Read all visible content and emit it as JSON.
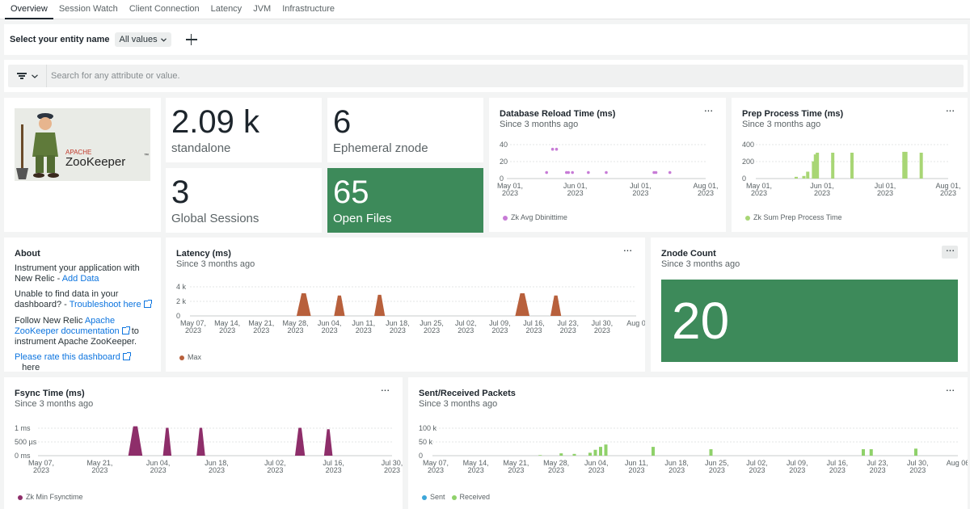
{
  "tabs": [
    "Overview",
    "Session Watch",
    "Client Connection",
    "Latency",
    "JVM",
    "Infrastructure"
  ],
  "filter": {
    "label": "Select your entity name",
    "value": "All values"
  },
  "search": {
    "placeholder": "Search for any attribute or value."
  },
  "logo": {
    "brand": "APACHE",
    "name": "ZooKeeper",
    "tm": "™"
  },
  "billboards": [
    {
      "value": "2.09 k",
      "label": "standalone"
    },
    {
      "value": "6",
      "label": "Ephemeral znode"
    },
    {
      "value": "3",
      "label": "Global Sessions"
    },
    {
      "value": "65",
      "label": "Open Files"
    }
  ],
  "about": {
    "title": "About",
    "p1_text": "Instrument your application with New Relic - ",
    "p1_link": "Add Data",
    "p2_text": "Unable to find data in your dashboard? - ",
    "p2_link": "Troubleshoot here",
    "p3_text": "Follow New Relic ",
    "p3_link": "Apache ZooKeeper documentation",
    "p3_tail": " to instrument Apache ZooKeeper.",
    "p4_link": "Please rate this dashboard",
    "p4_tail": "here"
  },
  "znode": {
    "title": "Znode Count",
    "subtitle": "Since 3 months ago",
    "value": "20"
  },
  "colors": {
    "green": "#3d8a5a",
    "purple": "#c77bd6",
    "lime": "#a8d675",
    "rust": "#b8603c",
    "maroon": "#8e2e6a",
    "blue": "#3da6d9",
    "received": "#8fd16a"
  },
  "chart_data": [
    {
      "id": "dbreload",
      "type": "scatter",
      "title": "Database Reload Time (ms)",
      "subtitle": "Since 3 months ago",
      "yticks": [
        "40",
        "20",
        "0"
      ],
      "ylim": [
        0,
        45
      ],
      "xticks": [
        "May 01,\n2023",
        "Jun 01,\n2023",
        "Jul 01,\n2023",
        "Aug 01,\n2023"
      ],
      "xlim": [
        0,
        1
      ],
      "series": [
        {
          "name": "Zk Avg Dbinittime",
          "color": "#c77bd6",
          "points": [
            [
              0.2,
              7
            ],
            [
              0.23,
              34
            ],
            [
              0.25,
              34
            ],
            [
              0.3,
              7
            ],
            [
              0.31,
              7
            ],
            [
              0.33,
              7
            ],
            [
              0.41,
              7
            ],
            [
              0.5,
              7
            ],
            [
              0.74,
              7
            ],
            [
              0.75,
              7
            ],
            [
              0.82,
              7
            ]
          ]
        }
      ]
    },
    {
      "id": "prep",
      "type": "bar",
      "title": "Prep Process Time (ms)",
      "subtitle": "Since 3 months ago",
      "yticks": [
        "400",
        "200",
        "0"
      ],
      "ylim": [
        0,
        450
      ],
      "xticks": [
        "May 01,\n2023",
        "Jun 01,\n2023",
        "Jul 01,\n2023",
        "Aug 01,\n2023"
      ],
      "xlim": [
        0,
        1
      ],
      "series": [
        {
          "name": "Zk Sum Prep Process Time",
          "color": "#a8d675",
          "points": [
            [
              0.21,
              20
            ],
            [
              0.25,
              30
            ],
            [
              0.27,
              80
            ],
            [
              0.3,
              200
            ],
            [
              0.31,
              280
            ],
            [
              0.32,
              300
            ],
            [
              0.4,
              300
            ],
            [
              0.5,
              300
            ],
            [
              0.77,
              310
            ],
            [
              0.78,
              310
            ],
            [
              0.86,
              300
            ]
          ]
        }
      ]
    },
    {
      "id": "latency",
      "type": "area",
      "title": "Latency (ms)",
      "subtitle": "Since 3 months ago",
      "yticks": [
        "4 k",
        "2 k",
        "0"
      ],
      "ylim": [
        0,
        4500
      ],
      "xticks": [
        "May 07,\n2023",
        "May 14,\n2023",
        "May 21,\n2023",
        "May 28,\n2023",
        "Jun 04,\n2023",
        "Jun 11,\n2023",
        "Jun 18,\n2023",
        "Jun 25,\n2023",
        "Jul 02,\n2023",
        "Jul 09,\n2023",
        "Jul 16,\n2023",
        "Jul 23,\n2023",
        "Jul 30,\n2023",
        "Aug 0"
      ],
      "xlim": [
        0,
        1
      ],
      "series": [
        {
          "name": "Max",
          "color": "#b8603c",
          "spikes": [
            [
              0.255,
              3000,
              0.016
            ],
            [
              0.335,
              2700,
              0.012
            ],
            [
              0.425,
              2800,
              0.012
            ],
            [
              0.745,
              3000,
              0.016
            ],
            [
              0.82,
              2700,
              0.012
            ]
          ]
        }
      ]
    },
    {
      "id": "fsync",
      "type": "area",
      "title": "Fsync Time (ms)",
      "subtitle": "Since 3 months ago",
      "yticks": [
        "1 ms",
        "500 µs",
        "0 ms"
      ],
      "ylim": [
        0,
        1.1
      ],
      "xticks": [
        "May 07,\n2023",
        "May 21,\n2023",
        "Jun 04,\n2023",
        "Jun 18,\n2023",
        "Jul 02,\n2023",
        "Jul 16,\n2023",
        "Jul 30,\n2023"
      ],
      "xlim": [
        0,
        1
      ],
      "series": [
        {
          "name": "Zk Min Fsynctime",
          "color": "#8e2e6a",
          "spikes": [
            [
              0.275,
              1.0,
              0.02
            ],
            [
              0.365,
              0.95,
              0.012
            ],
            [
              0.46,
              0.95,
              0.012
            ],
            [
              0.74,
              0.95,
              0.014
            ],
            [
              0.82,
              0.9,
              0.012
            ]
          ]
        }
      ]
    },
    {
      "id": "packets",
      "type": "bar",
      "title": "Sent/Received Packets",
      "subtitle": "Since 3 months ago",
      "yticks": [
        "100 k",
        "50 k",
        "0"
      ],
      "ylim": [
        0,
        110000
      ],
      "xticks": [
        "May 07,\n2023",
        "May 14,\n2023",
        "May 21,\n2023",
        "May 28,\n2023",
        "Jun 04,\n2023",
        "Jun 11,\n2023",
        "Jun 18,\n2023",
        "Jun 25,\n2023",
        "Jul 02,\n2023",
        "Jul 09,\n2023",
        "Jul 16,\n2023",
        "Jul 23,\n2023",
        "Jul 30,\n2023",
        "Aug 06"
      ],
      "xlim": [
        0,
        1
      ],
      "series": [
        {
          "name": "Sent",
          "color": "#3da6d9",
          "points": [
            [
              0.245,
              500
            ],
            [
              0.27,
              500
            ],
            [
              0.3,
              3000
            ],
            [
              0.31,
              5000
            ],
            [
              0.32,
              8000
            ],
            [
              0.33,
              10000
            ],
            [
              0.42,
              15000
            ]
          ]
        },
        {
          "name": "Received",
          "color": "#8fd16a",
          "points": [
            [
              0.205,
              2000
            ],
            [
              0.245,
              8000
            ],
            [
              0.27,
              6000
            ],
            [
              0.3,
              10000
            ],
            [
              0.31,
              20000
            ],
            [
              0.32,
              30000
            ],
            [
              0.33,
              38000
            ],
            [
              0.42,
              30000
            ],
            [
              0.53,
              22000
            ],
            [
              0.82,
              22000
            ],
            [
              0.835,
              22000
            ],
            [
              0.92,
              24000
            ]
          ]
        }
      ]
    }
  ]
}
